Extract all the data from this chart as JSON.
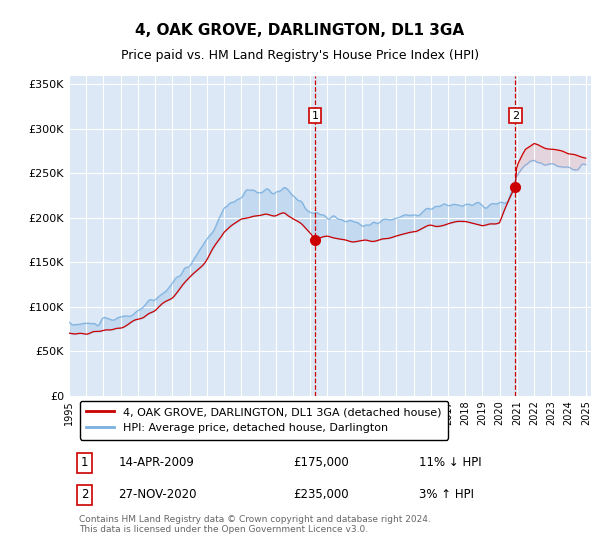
{
  "title": "4, OAK GROVE, DARLINGTON, DL1 3GA",
  "subtitle": "Price paid vs. HM Land Registry's House Price Index (HPI)",
  "background_color": "#ffffff",
  "plot_bg_color": "#dce8f5",
  "grid_color": "#ffffff",
  "hpi_color": "#7ab0e0",
  "price_color": "#cc0000",
  "ylim": [
    0,
    360000
  ],
  "yticks": [
    0,
    50000,
    100000,
    150000,
    200000,
    250000,
    300000,
    350000
  ],
  "ytick_labels": [
    "£0",
    "£50K",
    "£100K",
    "£150K",
    "£200K",
    "£250K",
    "£300K",
    "£350K"
  ],
  "marker1_date": 2009.27,
  "marker1_price": 175000,
  "marker2_date": 2020.9,
  "marker2_price": 235000,
  "legend_line1": "4, OAK GROVE, DARLINGTON, DL1 3GA (detached house)",
  "legend_line2": "HPI: Average price, detached house, Darlington",
  "annotation1_text1": "14-APR-2009",
  "annotation1_text2": "£175,000",
  "annotation1_text3": "11% ↓ HPI",
  "annotation2_text1": "27-NOV-2020",
  "annotation2_text2": "£235,000",
  "annotation2_text3": "3% ↑ HPI",
  "footer": "Contains HM Land Registry data © Crown copyright and database right 2024.\nThis data is licensed under the Open Government Licence v3.0."
}
